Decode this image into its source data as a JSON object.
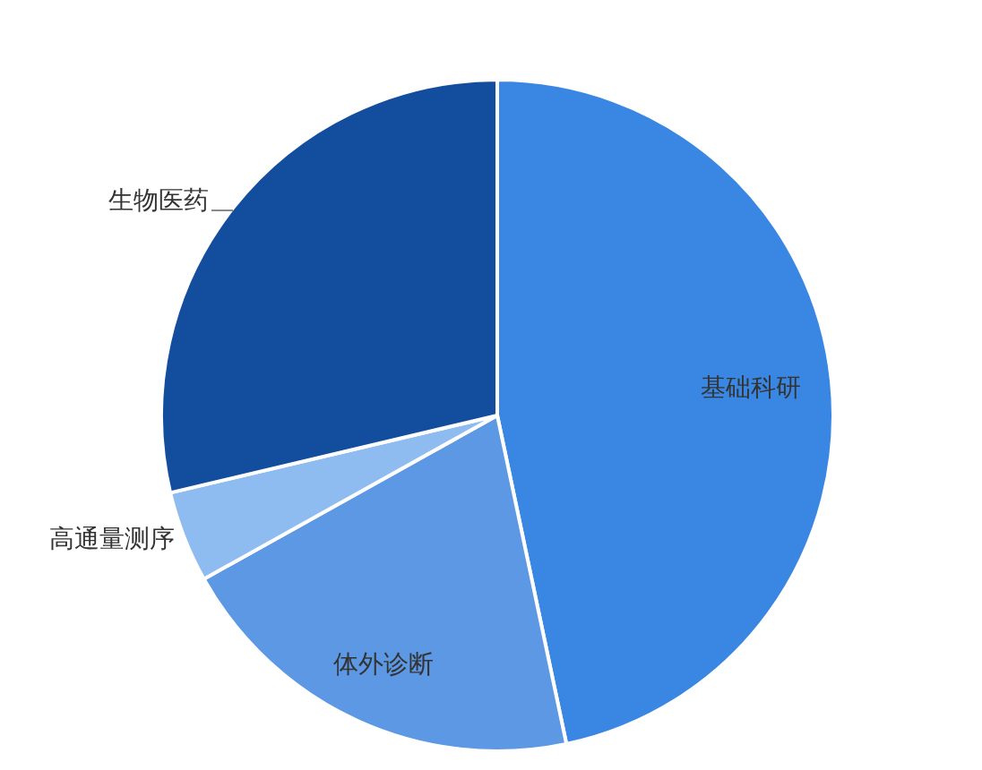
{
  "chart_data": {
    "type": "pie",
    "categories": [
      "基础科研",
      "体外诊断",
      "高通量测序",
      "生物医药"
    ],
    "values": [
      46.7,
      20.2,
      4.4,
      28.7
    ],
    "colors": [
      "#3a87e3",
      "#5c98e3",
      "#8fbcf0",
      "#134d9e"
    ]
  }
}
